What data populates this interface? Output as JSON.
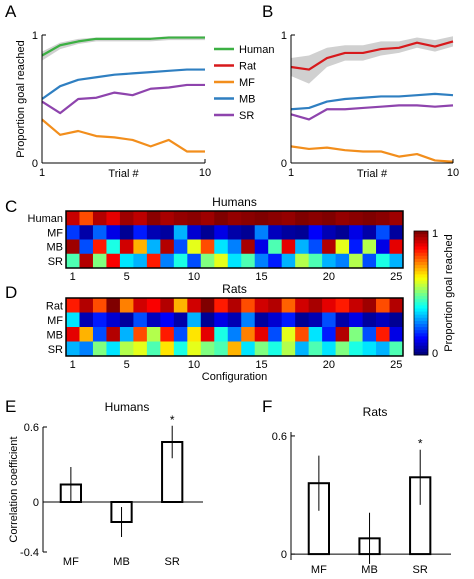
{
  "panel_letters": {
    "A": "A",
    "B": "B",
    "C": "C",
    "D": "D",
    "E": "E",
    "F": "F"
  },
  "colors": {
    "Human": "#3cb043",
    "Rat": "#d7191c",
    "MF": "#f28e1c",
    "MB": "#2f7fc1",
    "SR": "#8e44ad",
    "ci_band": "#d0d0d0"
  },
  "chart_data": [
    {
      "id": "A",
      "type": "line",
      "ylabel": "Proportion goal reached",
      "xlabel": "Trial #",
      "xlim": [
        1,
        10
      ],
      "ylim": [
        0,
        1
      ],
      "xticks": [
        1,
        10
      ],
      "yticks": [
        0,
        1
      ],
      "x": [
        1,
        2,
        3,
        4,
        5,
        6,
        7,
        8,
        9,
        10
      ],
      "series": [
        {
          "name": "Human",
          "values": [
            0.84,
            0.92,
            0.95,
            0.97,
            0.97,
            0.97,
            0.97,
            0.98,
            0.98,
            0.98
          ],
          "ci_low": [
            0.8,
            0.89,
            0.93,
            0.95,
            0.95,
            0.95,
            0.95,
            0.96,
            0.96,
            0.96
          ],
          "ci_high": [
            0.87,
            0.94,
            0.97,
            0.98,
            0.98,
            0.98,
            0.98,
            0.99,
            0.99,
            0.99
          ]
        },
        {
          "name": "MF",
          "values": [
            0.34,
            0.22,
            0.25,
            0.21,
            0.2,
            0.18,
            0.13,
            0.18,
            0.09,
            0.09
          ]
        },
        {
          "name": "MB",
          "values": [
            0.5,
            0.6,
            0.65,
            0.67,
            0.69,
            0.7,
            0.71,
            0.72,
            0.73,
            0.73
          ]
        },
        {
          "name": "SR",
          "values": [
            0.48,
            0.39,
            0.5,
            0.51,
            0.55,
            0.53,
            0.58,
            0.59,
            0.61,
            0.61
          ]
        }
      ]
    },
    {
      "id": "B",
      "type": "line",
      "xlabel": "Trial #",
      "xlim": [
        1,
        10
      ],
      "ylim": [
        0,
        1
      ],
      "xticks": [
        1,
        10
      ],
      "yticks": [
        0,
        1
      ],
      "x": [
        1,
        2,
        3,
        4,
        5,
        6,
        7,
        8,
        9,
        10
      ],
      "series": [
        {
          "name": "Rat",
          "values": [
            0.75,
            0.73,
            0.82,
            0.86,
            0.86,
            0.89,
            0.9,
            0.94,
            0.91,
            0.95
          ],
          "ci_low": [
            0.68,
            0.62,
            0.75,
            0.8,
            0.8,
            0.84,
            0.86,
            0.9,
            0.87,
            0.91
          ],
          "ci_high": [
            0.82,
            0.84,
            0.9,
            0.92,
            0.92,
            0.95,
            0.95,
            0.98,
            0.96,
            0.99
          ]
        },
        {
          "name": "MF",
          "values": [
            0.13,
            0.11,
            0.12,
            0.1,
            0.09,
            0.09,
            0.05,
            0.07,
            0.02,
            0.01
          ]
        },
        {
          "name": "MB",
          "values": [
            0.42,
            0.43,
            0.48,
            0.5,
            0.51,
            0.52,
            0.52,
            0.53,
            0.54,
            0.53
          ]
        },
        {
          "name": "SR",
          "values": [
            0.38,
            0.34,
            0.42,
            0.42,
            0.43,
            0.44,
            0.45,
            0.45,
            0.44,
            0.45
          ]
        }
      ]
    },
    {
      "id": "C",
      "type": "heatmap",
      "title": "Humans",
      "rows": [
        "Human",
        "MF",
        "MB",
        "SR"
      ],
      "columns": [
        1,
        2,
        3,
        4,
        5,
        6,
        7,
        8,
        9,
        10,
        11,
        12,
        13,
        14,
        15,
        16,
        17,
        18,
        19,
        20,
        21,
        22,
        23,
        24,
        25
      ],
      "xticks": [
        1,
        5,
        10,
        15,
        20,
        25
      ],
      "values": [
        [
          0.93,
          0.8,
          0.95,
          0.9,
          0.97,
          0.94,
          0.99,
          0.96,
          0.98,
          0.99,
          0.97,
          1.0,
          0.98,
          0.99,
          1.0,
          0.99,
          0.98,
          1.0,
          0.99,
          1.0,
          0.98,
          0.99,
          1.0,
          0.99,
          0.97
        ],
        [
          0.18,
          0.04,
          0.22,
          0.1,
          0.02,
          0.15,
          0.05,
          0.03,
          0.3,
          0.08,
          0.02,
          0.1,
          0.04,
          0.02,
          0.25,
          0.06,
          0.03,
          0.02,
          0.12,
          0.05,
          0.02,
          0.1,
          0.04,
          0.2,
          0.03
        ],
        [
          0.97,
          0.2,
          0.85,
          0.4,
          0.92,
          0.7,
          0.3,
          0.95,
          0.2,
          0.6,
          0.8,
          0.35,
          0.25,
          0.96,
          0.1,
          0.45,
          0.9,
          0.3,
          0.2,
          0.95,
          0.6,
          0.15,
          0.55,
          0.1,
          0.9
        ],
        [
          0.45,
          0.95,
          0.5,
          0.88,
          0.35,
          0.3,
          0.85,
          0.25,
          0.4,
          0.2,
          0.5,
          0.6,
          0.35,
          0.45,
          0.25,
          0.15,
          0.3,
          0.55,
          0.45,
          0.3,
          0.25,
          0.55,
          0.2,
          0.4,
          0.3
        ]
      ]
    },
    {
      "id": "D",
      "type": "heatmap",
      "title": "Rats",
      "xlabel": "Configuration",
      "rows": [
        "Rat",
        "MF",
        "MB",
        "SR"
      ],
      "columns": [
        1,
        2,
        3,
        4,
        5,
        6,
        7,
        8,
        9,
        10,
        11,
        12,
        13,
        14,
        15,
        16,
        17,
        18,
        19,
        20,
        21,
        22,
        23,
        24,
        25
      ],
      "xticks": [
        1,
        5,
        10,
        15,
        20,
        25
      ],
      "colorbar": {
        "label": "Proportion goal reached",
        "ticks": [
          0,
          1
        ]
      },
      "values": [
        [
          0.85,
          0.95,
          0.8,
          1.0,
          0.75,
          0.92,
          0.88,
          0.95,
          0.7,
          0.92,
          1.0,
          0.85,
          0.95,
          0.8,
          0.92,
          0.95,
          0.78,
          0.92,
          0.96,
          0.9,
          0.85,
          0.93,
          0.97,
          0.8,
          0.95
        ],
        [
          0.35,
          0.05,
          0.15,
          0.08,
          0.03,
          0.2,
          0.06,
          0.12,
          0.04,
          0.3,
          0.02,
          0.1,
          0.05,
          0.25,
          0.03,
          0.08,
          0.15,
          0.02,
          0.05,
          0.2,
          0.04,
          0.1,
          0.03,
          0.06,
          0.02
        ],
        [
          0.9,
          0.7,
          0.2,
          0.95,
          0.3,
          0.8,
          0.55,
          0.85,
          0.2,
          0.65,
          0.9,
          0.4,
          0.25,
          0.75,
          0.9,
          0.2,
          0.6,
          0.8,
          0.35,
          0.15,
          0.95,
          0.5,
          0.2,
          0.85,
          0.1
        ],
        [
          0.3,
          0.25,
          0.5,
          0.35,
          0.55,
          0.6,
          0.45,
          0.65,
          0.4,
          0.6,
          0.5,
          0.45,
          0.7,
          0.35,
          0.5,
          0.4,
          0.55,
          0.3,
          0.45,
          0.35,
          0.5,
          0.4,
          0.35,
          0.3,
          0.45
        ]
      ]
    },
    {
      "id": "E",
      "type": "bar",
      "title": "Humans",
      "ylabel": "Correlation coefficient",
      "categories": [
        "MF",
        "MB",
        "SR"
      ],
      "values": [
        0.14,
        -0.16,
        0.48
      ],
      "errors": [
        0.14,
        0.12,
        0.13
      ],
      "significance": [
        "",
        "",
        "*"
      ],
      "ylim": [
        -0.4,
        0.6
      ],
      "yticks": [
        -0.4,
        0,
        0.6
      ]
    },
    {
      "id": "F",
      "type": "bar",
      "title": "Rats",
      "categories": [
        "MF",
        "MB",
        "SR"
      ],
      "values": [
        0.36,
        0.08,
        0.39
      ],
      "errors": [
        0.14,
        0.13,
        0.14
      ],
      "significance": [
        "",
        "",
        "*"
      ],
      "ylim": [
        -0.03,
        0.62
      ],
      "yticks": [
        0,
        0.6
      ]
    }
  ],
  "legend": [
    "Human",
    "Rat",
    "MF",
    "MB",
    "SR"
  ]
}
